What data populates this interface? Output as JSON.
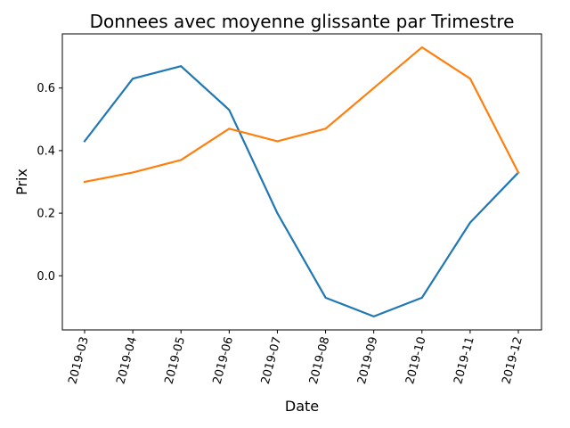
{
  "chart_data": {
    "type": "line",
    "title": "Donnees avec moyenne glissante par Trimestre",
    "xlabel": "Date",
    "ylabel": "Prix",
    "categories": [
      "2019-03",
      "2019-04",
      "2019-05",
      "2019-06",
      "2019-07",
      "2019-08",
      "2019-09",
      "2019-10",
      "2019-11",
      "2019-12"
    ],
    "series": [
      {
        "color": "#1f77b4",
        "values": [
          0.43,
          0.63,
          0.67,
          0.53,
          0.2,
          -0.07,
          -0.13,
          -0.07,
          0.17,
          0.33
        ]
      },
      {
        "color": "#ff7f0e",
        "values": [
          0.3,
          0.33,
          0.37,
          0.47,
          0.43,
          0.47,
          0.6,
          0.73,
          0.63,
          0.33
        ]
      }
    ],
    "yticks": [
      "0.0",
      "0.2",
      "0.4",
      "0.6"
    ],
    "ylim": [
      -0.173,
      0.773
    ],
    "xtick_rotation": 75,
    "grid": false,
    "legend": "none"
  }
}
